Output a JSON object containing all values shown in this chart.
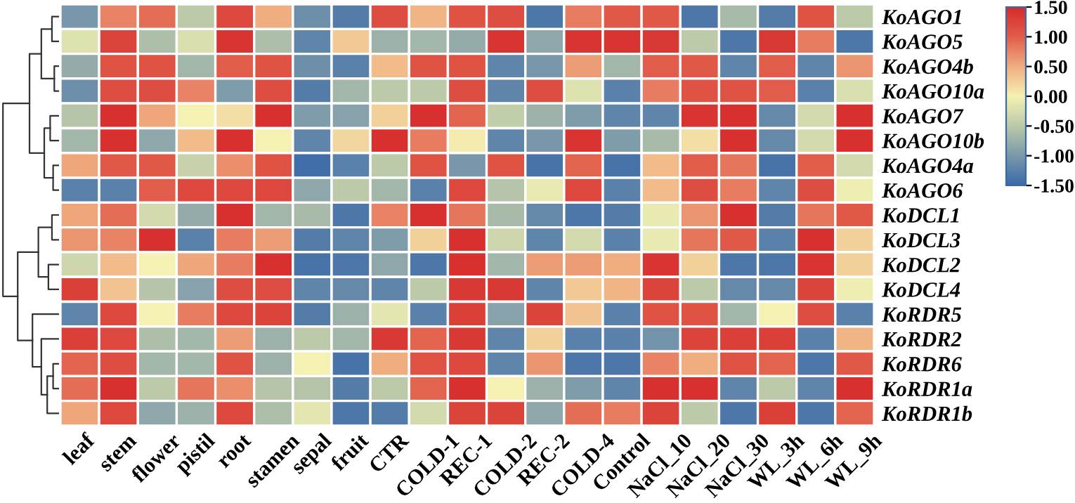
{
  "chart_data": {
    "type": "heatmap",
    "categories": [
      "leaf",
      "stem",
      "flower",
      "pistil",
      "root",
      "stamen",
      "sepal",
      "fruit",
      "CTR",
      "COLD-1",
      "REC-1",
      "COLD-2",
      "REC-2",
      "COLD-4",
      "Control",
      "NaCl_10",
      "NaCl_20",
      "NaCl_30",
      "WL_3h",
      "WL_6h",
      "WL_9h"
    ],
    "y_categories": [
      "KoAGO1",
      "KoAGO5",
      "KoAGO4b",
      "KoAGO10a",
      "KoAGO7",
      "KoAGO10b",
      "KoAGO4a",
      "KoAGO6",
      "KoDCL1",
      "KoDCL3",
      "KoDCL2",
      "KoDCL4",
      "KoRDR5",
      "KoRDR2",
      "KoRDR6",
      "KoRDR1a",
      "KoRDR1b"
    ],
    "clim": [
      -1.5,
      1.5
    ],
    "cticks": [
      {
        "value": 1.5,
        "label": "1.50"
      },
      {
        "value": 1.0,
        "label": "1.00"
      },
      {
        "value": 0.5,
        "label": "0.50"
      },
      {
        "value": 0.0,
        "label": "0.00"
      },
      {
        "value": -0.5,
        "label": "-0.50"
      },
      {
        "value": -1.0,
        "label": "-1.00"
      },
      {
        "value": -1.5,
        "label": "-1.50"
      }
    ],
    "cells": [
      [
        -1.0,
        0.75,
        0.9,
        -0.5,
        1.2,
        0.5,
        -1.1,
        -1.3,
        1.15,
        0.45,
        1.1,
        1.15,
        -1.35,
        0.8,
        1.05,
        1.05,
        -1.35,
        -0.65,
        -1.3,
        1.1,
        -0.5
      ],
      [
        -0.2,
        1.25,
        -0.6,
        -0.25,
        1.4,
        -0.6,
        -1.2,
        0.3,
        -0.75,
        -0.7,
        -0.8,
        1.4,
        -0.85,
        1.4,
        1.4,
        1.35,
        -0.5,
        -1.35,
        1.35,
        0.8,
        -1.35
      ],
      [
        -0.8,
        1.1,
        1.1,
        -0.7,
        1.0,
        1.1,
        -1.1,
        -1.25,
        0.4,
        1.1,
        1.1,
        -1.2,
        -1.0,
        0.6,
        -0.7,
        1.0,
        1.05,
        -1.2,
        1.0,
        -1.2,
        0.65
      ],
      [
        -1.1,
        1.15,
        1.15,
        0.75,
        -0.95,
        1.15,
        -1.3,
        -0.7,
        -0.5,
        -0.5,
        1.15,
        -1.2,
        1.15,
        -0.2,
        -1.25,
        0.8,
        1.1,
        1.1,
        1.0,
        -1.25,
        -0.25
      ],
      [
        -0.55,
        1.45,
        0.55,
        0.0,
        0.15,
        1.45,
        -0.95,
        -0.9,
        0.25,
        1.45,
        0.95,
        -0.45,
        -0.75,
        -0.95,
        -1.2,
        -1.2,
        1.4,
        1.45,
        -1.15,
        -0.3,
        1.45
      ],
      [
        -0.7,
        1.45,
        -0.85,
        0.4,
        1.45,
        0.0,
        -1.2,
        0.2,
        1.45,
        0.8,
        0.05,
        -1.2,
        -1.0,
        1.4,
        -0.95,
        -0.65,
        0.15,
        1.45,
        -1.15,
        -0.3,
        1.45
      ],
      [
        0.55,
        1.05,
        1.05,
        -0.4,
        0.7,
        1.1,
        -1.45,
        -1.25,
        -0.5,
        1.1,
        -1.0,
        1.1,
        -1.4,
        0.95,
        -1.4,
        0.4,
        1.0,
        0.85,
        -1.4,
        1.0,
        -0.3
      ],
      [
        -1.25,
        -1.25,
        1.0,
        1.2,
        1.2,
        1.2,
        -0.85,
        -0.5,
        -0.7,
        -1.25,
        1.2,
        -0.55,
        -0.1,
        1.2,
        -1.25,
        0.4,
        1.15,
        0.8,
        -1.2,
        1.15,
        -0.05
      ],
      [
        0.55,
        0.9,
        -0.3,
        -0.8,
        1.45,
        -0.7,
        -0.65,
        -1.35,
        0.75,
        1.45,
        0.85,
        -0.65,
        -1.15,
        -1.35,
        -1.3,
        -0.1,
        0.65,
        1.45,
        -1.3,
        0.85,
        1.05
      ],
      [
        0.65,
        0.75,
        1.45,
        -1.25,
        0.8,
        0.6,
        -1.3,
        -1.2,
        -0.95,
        0.25,
        1.45,
        -0.35,
        -1.2,
        -0.3,
        -1.25,
        -0.1,
        0.85,
        1.05,
        -1.25,
        1.45,
        0.25
      ],
      [
        -0.35,
        0.4,
        0.0,
        0.55,
        0.8,
        1.45,
        -1.4,
        -1.35,
        -0.85,
        -1.35,
        1.45,
        -0.7,
        0.6,
        0.6,
        0.5,
        1.4,
        0.25,
        -1.35,
        -1.35,
        1.4,
        0.25
      ],
      [
        1.3,
        0.35,
        -0.55,
        -0.9,
        1.15,
        1.15,
        -1.2,
        -1.15,
        -1.2,
        -0.5,
        1.35,
        1.35,
        -1.2,
        0.3,
        0.45,
        1.25,
        -0.5,
        -1.15,
        -1.15,
        1.25,
        -0.05
      ],
      [
        -1.2,
        1.2,
        0.0,
        0.8,
        1.2,
        1.25,
        -1.3,
        -0.75,
        -0.15,
        -1.25,
        1.3,
        -0.9,
        1.25,
        0.35,
        -1.25,
        1.1,
        1.1,
        -0.7,
        0.0,
        1.15,
        -1.25
      ],
      [
        1.3,
        1.2,
        -0.6,
        -0.7,
        0.6,
        -0.75,
        -0.5,
        -0.7,
        1.35,
        0.95,
        1.35,
        -1.2,
        0.25,
        -1.25,
        -1.25,
        -1.05,
        1.25,
        1.3,
        1.3,
        -1.25,
        0.45
      ],
      [
        0.95,
        1.15,
        -0.7,
        -0.7,
        1.1,
        -0.75,
        0.0,
        -1.4,
        0.5,
        1.1,
        1.2,
        -1.2,
        0.65,
        -1.35,
        -1.35,
        0.75,
        0.5,
        1.1,
        0.95,
        -1.35,
        1.05
      ],
      [
        0.9,
        1.45,
        -0.5,
        0.85,
        0.7,
        -0.55,
        -0.55,
        -1.3,
        -0.5,
        0.95,
        1.45,
        0.0,
        -0.75,
        -0.95,
        -1.2,
        1.45,
        1.45,
        -1.2,
        -0.5,
        -1.2,
        1.45
      ],
      [
        0.55,
        1.2,
        -0.85,
        -0.75,
        1.2,
        -0.6,
        -0.15,
        -1.35,
        -1.3,
        -0.3,
        1.25,
        1.25,
        -0.85,
        0.9,
        0.8,
        1.25,
        -0.5,
        -1.35,
        1.3,
        -1.35,
        0.95
      ]
    ]
  }
}
